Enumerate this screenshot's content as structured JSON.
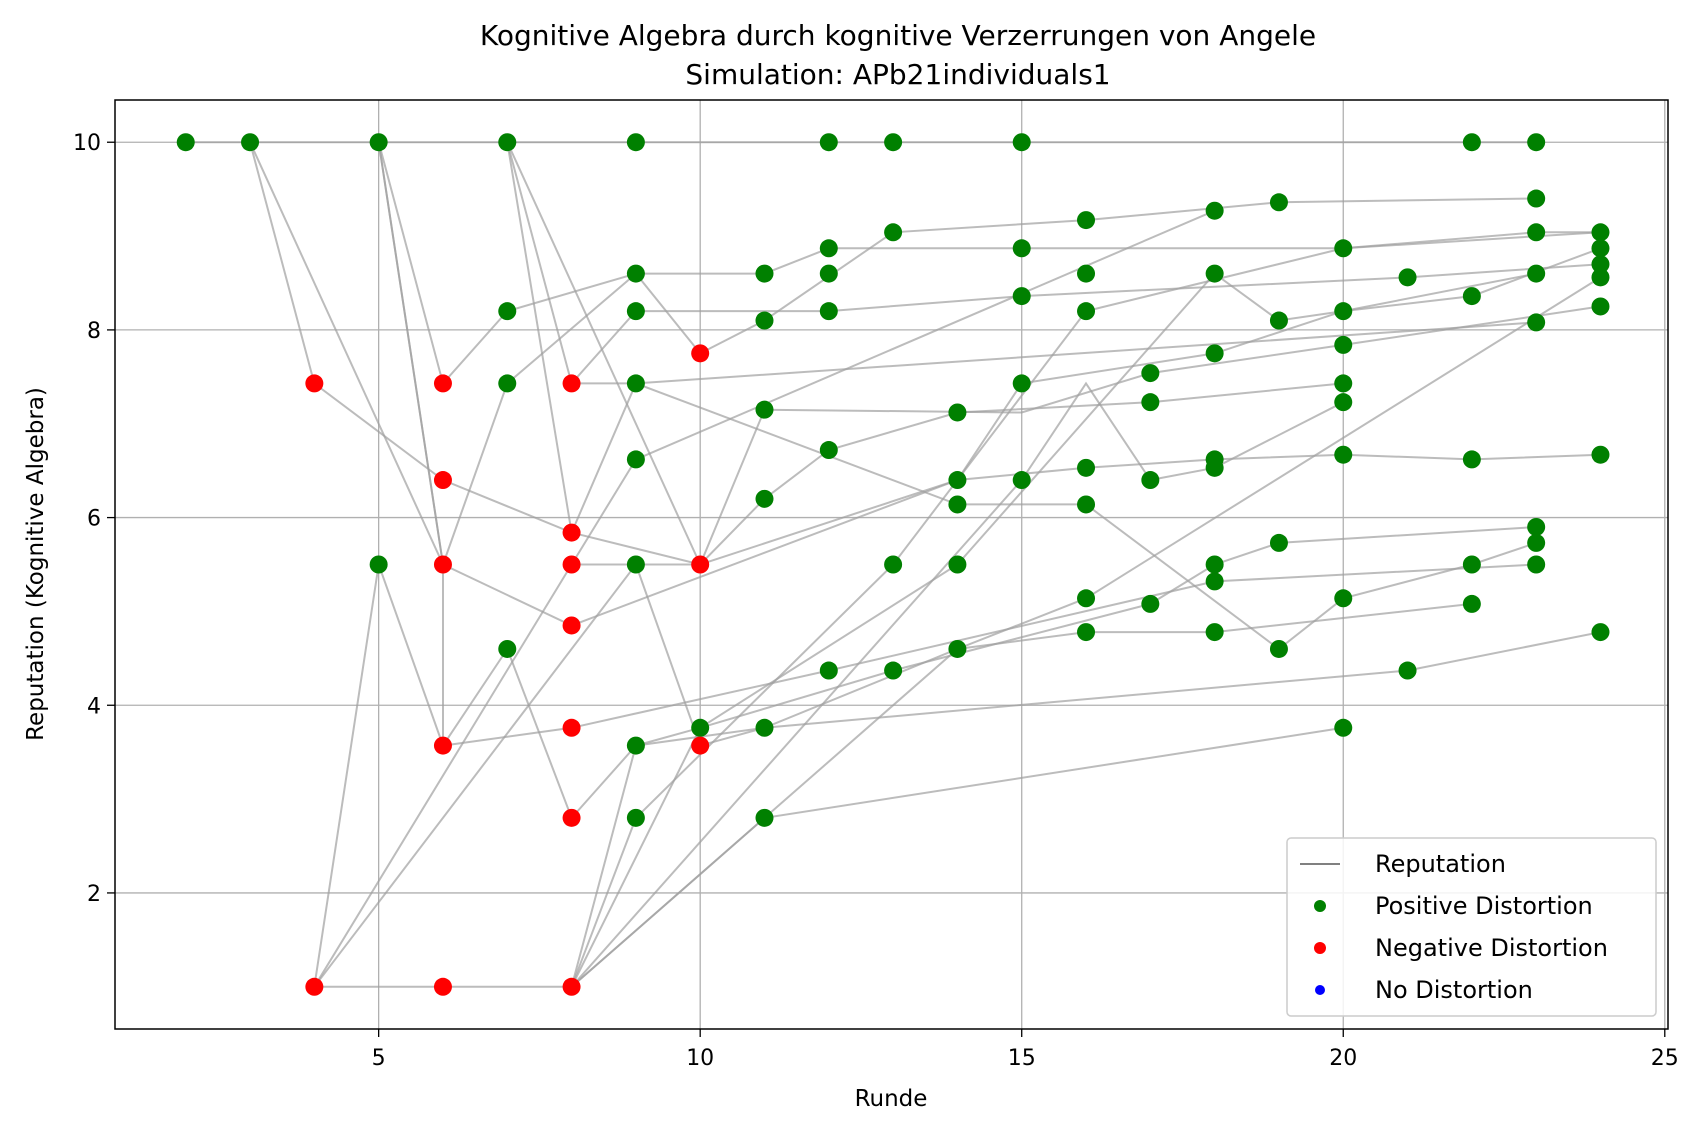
{
  "chart_data": {
    "type": "scatter",
    "title": "Kognitive Algebra durch kognitive Verzerrungen von Angele",
    "subtitle": "Simulation: APb21individuals1",
    "xlabel": "Runde",
    "ylabel": "Reputation (Kognitive Algebra)",
    "xlim": [
      0.9,
      25.05
    ],
    "ylim": [
      0.55,
      10.45
    ],
    "xticks": [
      5,
      10,
      15,
      20,
      25
    ],
    "yticks": [
      2,
      4,
      6,
      8,
      10
    ],
    "grid": true,
    "legend_position": "bottom-right",
    "legend": [
      {
        "label": "Reputation",
        "kind": "line",
        "color": "#808080"
      },
      {
        "label": "Positive Distortion",
        "kind": "marker",
        "color": "#008000"
      },
      {
        "label": "Negative Distortion",
        "kind": "marker",
        "color": "#ff0000"
      },
      {
        "label": "No Distortion",
        "kind": "marker",
        "color": "#0000ff"
      }
    ],
    "line_color": "#a0a0a0",
    "positive_color": "#008000",
    "negative_color": "#ff0000",
    "trajectories": [
      [
        [
          2,
          10
        ],
        [
          3,
          10
        ],
        [
          5,
          10
        ],
        [
          7,
          10
        ],
        [
          9,
          10
        ],
        [
          12,
          10
        ],
        [
          13,
          10
        ],
        [
          15,
          10
        ],
        [
          22,
          10
        ],
        [
          23,
          10
        ]
      ],
      [
        [
          3,
          10
        ],
        [
          4,
          7.43
        ],
        [
          6,
          6.4
        ],
        [
          8,
          5.84
        ],
        [
          10,
          5.5
        ],
        [
          14,
          6.4
        ],
        [
          16,
          6.53
        ],
        [
          18,
          6.62
        ],
        [
          20,
          6.67
        ],
        [
          22,
          6.62
        ],
        [
          24,
          6.67
        ]
      ],
      [
        [
          3,
          10
        ],
        [
          6,
          5.5
        ],
        [
          8,
          4.85
        ],
        [
          14,
          6.4
        ],
        [
          15,
          7.43
        ],
        [
          18,
          7.75
        ],
        [
          20,
          8.2
        ],
        [
          23,
          8.6
        ]
      ],
      [
        [
          5,
          10
        ],
        [
          6,
          5.5
        ],
        [
          7,
          7.43
        ],
        [
          9,
          8.6
        ],
        [
          10,
          7.75
        ],
        [
          11,
          8.1
        ],
        [
          13,
          9.04
        ],
        [
          16,
          9.17
        ],
        [
          19,
          9.36
        ],
        [
          23,
          9.4
        ]
      ],
      [
        [
          5,
          10
        ],
        [
          6,
          7.43
        ],
        [
          7,
          8.2
        ],
        [
          9,
          8.6
        ],
        [
          11,
          8.6
        ],
        [
          12,
          8.87
        ],
        [
          15,
          8.87
        ],
        [
          20,
          8.87
        ],
        [
          24,
          9.04
        ]
      ],
      [
        [
          5,
          10
        ],
        [
          6,
          5.5
        ],
        [
          6,
          3.57
        ],
        [
          7,
          4.6
        ],
        [
          8,
          2.8
        ],
        [
          9,
          3.57
        ],
        [
          11,
          3.76
        ],
        [
          14,
          4.6
        ],
        [
          16,
          4.78
        ],
        [
          18,
          4.78
        ],
        [
          22,
          5.08
        ]
      ],
      [
        [
          4,
          1
        ],
        [
          5,
          5.5
        ],
        [
          6,
          3.57
        ],
        [
          8,
          3.76
        ],
        [
          12,
          4.37
        ],
        [
          18,
          5.32
        ],
        [
          23,
          5.5
        ]
      ],
      [
        [
          4,
          1
        ],
        [
          6,
          1
        ],
        [
          8,
          1
        ],
        [
          9,
          3.57
        ],
        [
          10,
          3.76
        ],
        [
          13,
          4.37
        ],
        [
          17,
          5.08
        ],
        [
          18,
          5.5
        ],
        [
          19,
          5.73
        ],
        [
          23,
          5.9
        ]
      ],
      [
        [
          4,
          1
        ],
        [
          8,
          5.5
        ],
        [
          10,
          5.5
        ],
        [
          11,
          6.2
        ],
        [
          12,
          6.72
        ],
        [
          14,
          7.12
        ],
        [
          17,
          7.23
        ],
        [
          20,
          7.43
        ]
      ],
      [
        [
          4,
          1
        ],
        [
          9,
          5.5
        ],
        [
          10,
          3.57
        ],
        [
          11,
          3.76
        ],
        [
          21,
          4.37
        ],
        [
          24,
          4.78
        ]
      ],
      [
        [
          7,
          10
        ],
        [
          8,
          7.43
        ],
        [
          9,
          8.2
        ],
        [
          12,
          8.2
        ],
        [
          15,
          8.36
        ],
        [
          21,
          8.56
        ],
        [
          24,
          8.7
        ]
      ],
      [
        [
          7,
          10
        ],
        [
          8,
          5.84
        ],
        [
          9,
          7.43
        ],
        [
          14,
          6.14
        ],
        [
          16,
          6.14
        ],
        [
          19,
          4.6
        ],
        [
          20,
          5.14
        ],
        [
          22,
          5.5
        ],
        [
          23,
          5.73
        ]
      ],
      [
        [
          7,
          10
        ],
        [
          10,
          5.5
        ],
        [
          11,
          7.15
        ],
        [
          15,
          7.12
        ],
        [
          17,
          7.54
        ],
        [
          20,
          7.84
        ],
        [
          24,
          8.25
        ]
      ],
      [
        [
          8,
          7.43
        ],
        [
          9,
          7.43
        ],
        [
          23,
          8.08
        ]
      ],
      [
        [
          8,
          1
        ],
        [
          9,
          2.8
        ],
        [
          13,
          5.5
        ],
        [
          16,
          8.2
        ],
        [
          20,
          8.87
        ],
        [
          23,
          9.04
        ],
        [
          24,
          9.04
        ]
      ],
      [
        [
          8,
          1
        ],
        [
          11,
          2.8
        ],
        [
          20,
          3.76
        ]
      ],
      [
        [
          8,
          1
        ],
        [
          10,
          3.76
        ],
        [
          14,
          5.5
        ],
        [
          18,
          8.6
        ],
        [
          19,
          8.1
        ],
        [
          20,
          8.2
        ],
        [
          22,
          8.36
        ],
        [
          24,
          8.87
        ]
      ],
      [
        [
          8,
          1
        ],
        [
          14,
          4.6
        ],
        [
          16,
          5.14
        ],
        [
          24,
          8.56
        ]
      ],
      [
        [
          8,
          1
        ],
        [
          15,
          6.4
        ],
        [
          16,
          7.43
        ],
        [
          17,
          6.4
        ],
        [
          18,
          6.53
        ],
        [
          20,
          7.23
        ]
      ],
      [
        [
          8,
          5.5
        ],
        [
          9,
          6.62
        ],
        [
          18,
          9.27
        ]
      ]
    ],
    "positive_points": [
      [
        2,
        10
      ],
      [
        3,
        10
      ],
      [
        5,
        10
      ],
      [
        7,
        10
      ],
      [
        9,
        10
      ],
      [
        12,
        10
      ],
      [
        13,
        10
      ],
      [
        15,
        10
      ],
      [
        22,
        10
      ],
      [
        23,
        10
      ],
      [
        5,
        5.5
      ],
      [
        7,
        8.2
      ],
      [
        7,
        7.43
      ],
      [
        7,
        4.6
      ],
      [
        9,
        8.6
      ],
      [
        9,
        8.2
      ],
      [
        9,
        7.43
      ],
      [
        9,
        6.62
      ],
      [
        9,
        5.5
      ],
      [
        9,
        3.57
      ],
      [
        9,
        2.8
      ],
      [
        10,
        3.76
      ],
      [
        11,
        8.6
      ],
      [
        11,
        8.1
      ],
      [
        11,
        7.15
      ],
      [
        11,
        6.2
      ],
      [
        11,
        3.76
      ],
      [
        11,
        2.8
      ],
      [
        12,
        8.87
      ],
      [
        12,
        8.6
      ],
      [
        12,
        8.2
      ],
      [
        12,
        6.72
      ],
      [
        12,
        4.37
      ],
      [
        13,
        9.04
      ],
      [
        13,
        5.5
      ],
      [
        13,
        4.37
      ],
      [
        14,
        7.12
      ],
      [
        14,
        6.4
      ],
      [
        14,
        6.14
      ],
      [
        14,
        5.5
      ],
      [
        14,
        4.6
      ],
      [
        15,
        8.87
      ],
      [
        15,
        8.36
      ],
      [
        15,
        7.43
      ],
      [
        15,
        6.4
      ],
      [
        16,
        9.17
      ],
      [
        16,
        8.6
      ],
      [
        16,
        8.2
      ],
      [
        16,
        6.53
      ],
      [
        16,
        6.14
      ],
      [
        16,
        5.14
      ],
      [
        16,
        4.78
      ],
      [
        17,
        7.54
      ],
      [
        17,
        7.23
      ],
      [
        17,
        6.4
      ],
      [
        17,
        5.08
      ],
      [
        18,
        9.27
      ],
      [
        18,
        8.6
      ],
      [
        18,
        7.75
      ],
      [
        18,
        6.62
      ],
      [
        18,
        6.53
      ],
      [
        18,
        5.5
      ],
      [
        18,
        5.32
      ],
      [
        18,
        4.78
      ],
      [
        19,
        9.36
      ],
      [
        19,
        8.1
      ],
      [
        19,
        5.73
      ],
      [
        19,
        4.6
      ],
      [
        20,
        8.87
      ],
      [
        20,
        8.2
      ],
      [
        20,
        7.84
      ],
      [
        20,
        7.43
      ],
      [
        20,
        7.23
      ],
      [
        20,
        6.67
      ],
      [
        20,
        5.14
      ],
      [
        20,
        3.76
      ],
      [
        21,
        8.56
      ],
      [
        21,
        4.37
      ],
      [
        22,
        8.36
      ],
      [
        22,
        6.62
      ],
      [
        22,
        5.5
      ],
      [
        22,
        5.08
      ],
      [
        23,
        9.4
      ],
      [
        23,
        9.04
      ],
      [
        23,
        8.6
      ],
      [
        23,
        8.08
      ],
      [
        23,
        5.9
      ],
      [
        23,
        5.73
      ],
      [
        23,
        5.5
      ],
      [
        24,
        9.04
      ],
      [
        24,
        8.87
      ],
      [
        24,
        8.7
      ],
      [
        24,
        8.56
      ],
      [
        24,
        8.25
      ],
      [
        24,
        6.67
      ],
      [
        24,
        4.78
      ]
    ],
    "negative_points": [
      [
        4,
        7.43
      ],
      [
        4,
        1
      ],
      [
        6,
        7.43
      ],
      [
        6,
        6.4
      ],
      [
        6,
        5.5
      ],
      [
        6,
        3.57
      ],
      [
        6,
        1
      ],
      [
        8,
        7.43
      ],
      [
        8,
        5.84
      ],
      [
        8,
        5.5
      ],
      [
        8,
        4.85
      ],
      [
        8,
        3.76
      ],
      [
        8,
        2.8
      ],
      [
        8,
        1
      ],
      [
        10,
        7.75
      ],
      [
        10,
        5.5
      ],
      [
        10,
        3.57
      ]
    ]
  }
}
